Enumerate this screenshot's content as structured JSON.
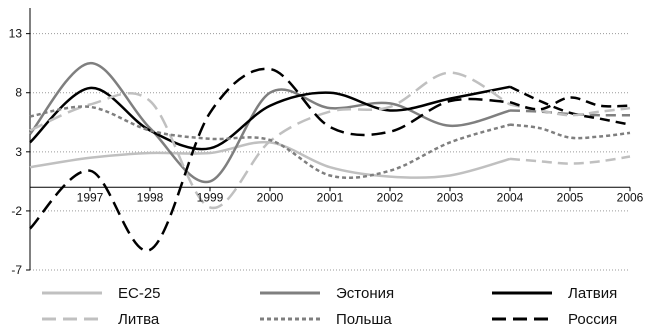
{
  "chart_data": {
    "type": "line",
    "title": "",
    "xlabel": "",
    "ylabel": "",
    "xlim": [
      1996,
      2006
    ],
    "ylim": [
      -7,
      15
    ],
    "x_ticks": [
      1997,
      1998,
      1999,
      2000,
      2001,
      2002,
      2003,
      2004,
      2005,
      2006
    ],
    "x_tick_labels": [
      "1997",
      "1998",
      "1999",
      "2000",
      "2001",
      "2002",
      "2003",
      "2004",
      "2005",
      "2006"
    ],
    "y_ticks": [
      13,
      8,
      3,
      -2,
      -7
    ],
    "y_tick_labels": [
      "13",
      "8",
      "3",
      "-2",
      "-7"
    ],
    "grid": "horizontal dotted",
    "legend_position": "bottom",
    "series": [
      {
        "name": "ЕС-25",
        "color": "#c0c0c0",
        "dash": "solid",
        "width": 2.5,
        "x": [
          1996,
          1997,
          1998,
          1999,
          2000,
          2001,
          2002,
          2003,
          2004,
          2004.5,
          2005,
          2005.5,
          2006
        ],
        "y": [
          1.7,
          2.5,
          2.9,
          2.9,
          3.8,
          1.7,
          0.9,
          1.0,
          2.4,
          2.2,
          2.0,
          2.2,
          2.6
        ],
        "split_x": 2004
      },
      {
        "name": "Эстония",
        "color": "#7f7f7f",
        "dash": "solid",
        "width": 2.5,
        "x": [
          1996,
          1997,
          1998,
          1999,
          2000,
          2001,
          2002,
          2003,
          2004,
          2004.5,
          2005,
          2005.5,
          2006
        ],
        "y": [
          4.5,
          10.5,
          5.0,
          0.5,
          8.0,
          6.7,
          7.1,
          5.2,
          6.5,
          6.4,
          6.2,
          6.1,
          6.1
        ],
        "split_x": 2004
      },
      {
        "name": "Латвия",
        "color": "#000000",
        "dash": "solid",
        "width": 2.5,
        "x": [
          1996,
          1997,
          1998,
          1999,
          2000,
          2001,
          2002,
          2003,
          2004,
          2004.5,
          2005,
          2005.5,
          2006
        ],
        "y": [
          3.8,
          8.4,
          4.8,
          3.3,
          6.9,
          8.0,
          6.5,
          7.5,
          8.5,
          7.3,
          6.3,
          5.8,
          5.3
        ],
        "split_x": 2004
      },
      {
        "name": "Литва",
        "color": "#c0c0c0",
        "dash": "dashed",
        "width": 2.5,
        "x": [
          1996,
          1997,
          1998,
          1999,
          2000,
          2001,
          2002,
          2003,
          2004,
          2004.5,
          2005,
          2005.5,
          2006
        ],
        "y": [
          4.8,
          7.0,
          7.3,
          -1.7,
          3.9,
          6.4,
          6.8,
          9.7,
          7.0,
          6.5,
          6.1,
          6.4,
          6.7
        ],
        "split_x": 2004
      },
      {
        "name": "Польша",
        "color": "#7f7f7f",
        "dash": "dotted",
        "width": 2.5,
        "x": [
          1996,
          1997,
          1998,
          1999,
          2000,
          2001,
          2002,
          2003,
          2004,
          2004.5,
          2005,
          2005.5,
          2006
        ],
        "y": [
          6.0,
          6.8,
          4.8,
          4.1,
          4.0,
          1.0,
          1.4,
          3.8,
          5.3,
          5.0,
          4.2,
          4.3,
          4.6
        ],
        "split_x": 2004
      },
      {
        "name": "Россия",
        "color": "#000000",
        "dash": "dashed",
        "width": 2.5,
        "x": [
          1996,
          1997,
          1998,
          1999,
          2000,
          2001,
          2002,
          2003,
          2004,
          2004.5,
          2005,
          2005.5,
          2006
        ],
        "y": [
          -3.5,
          1.4,
          -5.3,
          6.3,
          10.0,
          5.1,
          4.7,
          7.3,
          7.2,
          6.6,
          7.6,
          6.9,
          6.9
        ],
        "split_x": 2004
      }
    ]
  }
}
